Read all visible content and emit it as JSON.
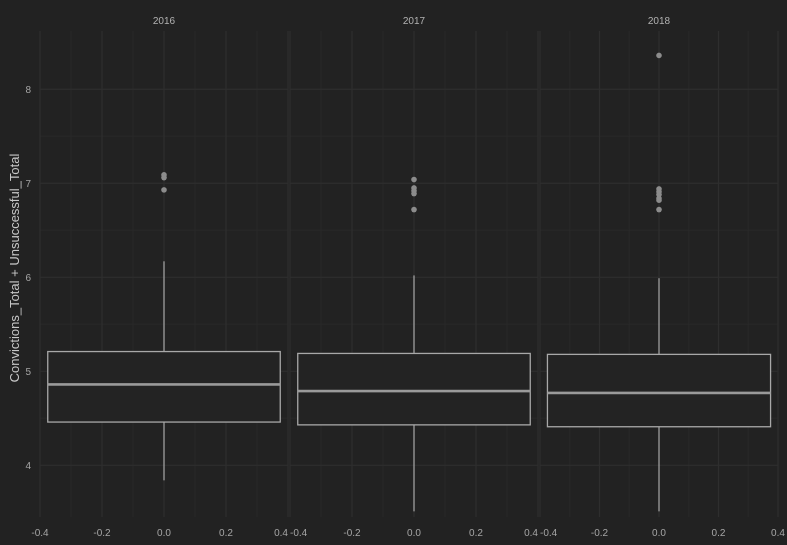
{
  "chart_data": {
    "type": "box",
    "ylabel": "Convictions_Total + Unsuccessful_Total",
    "xlabel": "",
    "x_ticks": [
      "-0.4",
      "-0.2",
      "0.0",
      "0.2",
      "0.4"
    ],
    "y_ticks": [
      "4",
      "5",
      "6",
      "7",
      "8"
    ],
    "xlim": [
      -0.4,
      0.4
    ],
    "ylim": [
      3.45,
      8.62
    ],
    "grid": true,
    "facets": [
      {
        "label": "2016",
        "box": {
          "x_min": -0.375,
          "x_max": 0.375,
          "whisker_low": 3.84,
          "q1": 4.46,
          "median": 4.86,
          "q3": 5.21,
          "whisker_high": 6.17
        },
        "outliers": [
          7.09,
          7.06,
          6.93
        ]
      },
      {
        "label": "2017",
        "box": {
          "x_min": -0.375,
          "x_max": 0.375,
          "whisker_low": 3.51,
          "q1": 4.43,
          "median": 4.79,
          "q3": 5.19,
          "whisker_high": 6.02
        },
        "outliers": [
          7.04,
          6.95,
          6.92,
          6.89,
          6.72
        ]
      },
      {
        "label": "2018",
        "box": {
          "x_min": -0.375,
          "x_max": 0.375,
          "whisker_low": 3.51,
          "q1": 4.41,
          "median": 4.77,
          "q3": 5.18,
          "whisker_high": 5.99
        },
        "outliers": [
          8.36,
          6.94,
          6.91,
          6.88,
          6.84,
          6.82,
          6.72
        ]
      }
    ]
  },
  "colors": {
    "background": "#222222",
    "grid_major": "#2e2e2e",
    "grid_minor": "#282828",
    "box_stroke": "#a8a8a8",
    "box_fill": "#232323",
    "median_stroke": "#9a9a9a",
    "outlier": "#8c8c8c",
    "tick_text": "#a6a6a6",
    "title_text": "#c8c8c8"
  }
}
